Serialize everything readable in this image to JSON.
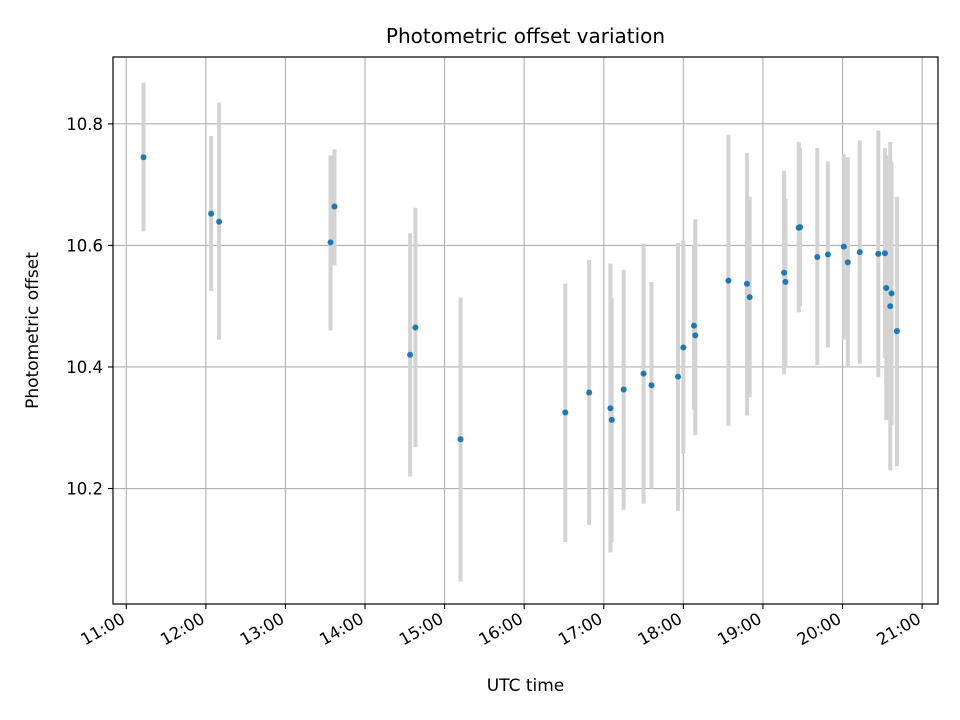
{
  "chart_data": {
    "type": "scatter",
    "title": "Photometric offset variation",
    "xlabel": "UTC time",
    "ylabel": "Photometric offset",
    "x_axis": "time",
    "xlim": [
      "10:50",
      "21:12"
    ],
    "ylim": [
      10.01,
      10.91
    ],
    "xticks": [
      "11:00",
      "12:00",
      "13:00",
      "14:00",
      "15:00",
      "16:00",
      "17:00",
      "18:00",
      "19:00",
      "20:00",
      "21:00"
    ],
    "yticks": [
      10.2,
      10.4,
      10.6,
      10.8
    ],
    "ytick_labels": [
      "10.2",
      "10.4",
      "10.6",
      "10.8"
    ],
    "grid": true,
    "marker_color": "#1f77b4",
    "errorbar_color": "#d3d3d3",
    "series": [
      {
        "points": [
          {
            "x": "11:13",
            "y": 10.745,
            "lo": 10.623,
            "hi": 10.868
          },
          {
            "x": "12:04",
            "y": 10.652,
            "lo": 10.525,
            "hi": 10.78
          },
          {
            "x": "12:10",
            "y": 10.639,
            "lo": 10.445,
            "hi": 10.835
          },
          {
            "x": "13:34",
            "y": 10.605,
            "lo": 10.46,
            "hi": 10.748
          },
          {
            "x": "13:37",
            "y": 10.664,
            "lo": 10.567,
            "hi": 10.758
          },
          {
            "x": "14:34",
            "y": 10.42,
            "lo": 10.22,
            "hi": 10.62
          },
          {
            "x": "14:38",
            "y": 10.465,
            "lo": 10.268,
            "hi": 10.662
          },
          {
            "x": "15:12",
            "y": 10.281,
            "lo": 10.047,
            "hi": 10.514
          },
          {
            "x": "16:31",
            "y": 10.325,
            "lo": 10.112,
            "hi": 10.537
          },
          {
            "x": "16:49",
            "y": 10.358,
            "lo": 10.14,
            "hi": 10.576
          },
          {
            "x": "17:05",
            "y": 10.332,
            "lo": 10.095,
            "hi": 10.57
          },
          {
            "x": "17:06",
            "y": 10.313,
            "lo": 10.112,
            "hi": 10.513
          },
          {
            "x": "17:15",
            "y": 10.363,
            "lo": 10.165,
            "hi": 10.56
          },
          {
            "x": "17:30",
            "y": 10.389,
            "lo": 10.175,
            "hi": 10.603
          },
          {
            "x": "17:36",
            "y": 10.37,
            "lo": 10.2,
            "hi": 10.54
          },
          {
            "x": "17:56",
            "y": 10.384,
            "lo": 10.163,
            "hi": 10.604
          },
          {
            "x": "18:00",
            "y": 10.432,
            "lo": 10.257,
            "hi": 10.608
          },
          {
            "x": "18:08",
            "y": 10.468,
            "lo": 10.33,
            "hi": 10.6
          },
          {
            "x": "18:09",
            "y": 10.452,
            "lo": 10.288,
            "hi": 10.643
          },
          {
            "x": "18:34",
            "y": 10.542,
            "lo": 10.303,
            "hi": 10.782
          },
          {
            "x": "18:48",
            "y": 10.537,
            "lo": 10.32,
            "hi": 10.752
          },
          {
            "x": "18:50",
            "y": 10.515,
            "lo": 10.35,
            "hi": 10.68
          },
          {
            "x": "19:16",
            "y": 10.555,
            "lo": 10.388,
            "hi": 10.723
          },
          {
            "x": "19:17",
            "y": 10.54,
            "lo": 10.4,
            "hi": 10.677
          },
          {
            "x": "19:27",
            "y": 10.629,
            "lo": 10.49,
            "hi": 10.77
          },
          {
            "x": "19:28",
            "y": 10.63,
            "lo": 10.5,
            "hi": 10.76
          },
          {
            "x": "19:41",
            "y": 10.581,
            "lo": 10.403,
            "hi": 10.76
          },
          {
            "x": "19:49",
            "y": 10.585,
            "lo": 10.432,
            "hi": 10.738
          },
          {
            "x": "20:01",
            "y": 10.598,
            "lo": 10.445,
            "hi": 10.75
          },
          {
            "x": "20:04",
            "y": 10.572,
            "lo": 10.4,
            "hi": 10.745
          },
          {
            "x": "20:13",
            "y": 10.589,
            "lo": 10.405,
            "hi": 10.773
          },
          {
            "x": "20:27",
            "y": 10.586,
            "lo": 10.383,
            "hi": 10.789
          },
          {
            "x": "20:32",
            "y": 10.587,
            "lo": 10.415,
            "hi": 10.76
          },
          {
            "x": "20:33",
            "y": 10.53,
            "lo": 10.313,
            "hi": 10.748
          },
          {
            "x": "20:36",
            "y": 10.5,
            "lo": 10.23,
            "hi": 10.77
          },
          {
            "x": "20:37",
            "y": 10.521,
            "lo": 10.305,
            "hi": 10.737
          },
          {
            "x": "20:41",
            "y": 10.459,
            "lo": 10.237,
            "hi": 10.68
          }
        ]
      }
    ]
  }
}
